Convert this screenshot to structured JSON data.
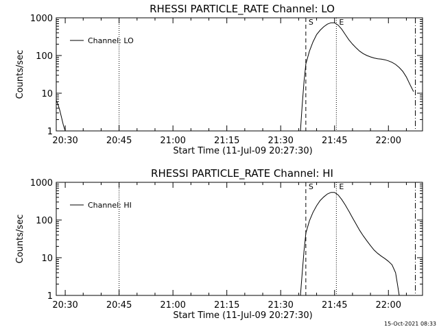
{
  "chart_data": [
    {
      "type": "line",
      "title": "RHESSI PARTICLE_RATE Channel: LO",
      "xlabel": "Start Time (11-Jul-09 20:27:30)",
      "ylabel": "Counts/sec",
      "yscale": "log",
      "ylim": [
        1,
        1000
      ],
      "xlim": [
        "20:27:30",
        "22:09:30"
      ],
      "xticks": [
        "20:30",
        "20:45",
        "21:00",
        "21:15",
        "21:30",
        "21:45",
        "22:00"
      ],
      "yticks": [
        "1",
        "10",
        "100",
        "1000"
      ],
      "legend": {
        "label": "Channel: LO",
        "placement": "top-left"
      },
      "vlines": [
        {
          "x": "20:45:00",
          "style": "dotted",
          "label": ""
        },
        {
          "x": "21:37:00",
          "style": "dashed",
          "label": "S"
        },
        {
          "x": "21:45:30",
          "style": "dotted",
          "label": "E"
        },
        {
          "x": "22:07:30",
          "style": "dashdot",
          "label": ""
        }
      ],
      "series": [
        {
          "name": "Channel: LO",
          "segments": [
            {
              "x": [
                "20:27:30",
                "20:28:00",
                "20:28:30",
                "20:29:00",
                "20:29:30",
                "20:30:00"
              ],
              "y": [
                6.5,
                5,
                3.5,
                2.2,
                1.4,
                1
              ]
            },
            {
              "x": [
                "21:35:30",
                "21:36:00",
                "21:36:30",
                "21:37:00",
                "21:38:00",
                "21:39:00",
                "21:40:00",
                "21:41:00",
                "21:42:00",
                "21:43:00",
                "21:44:00",
                "21:45:00",
                "21:46:00",
                "21:47:00",
                "21:48:00",
                "21:49:00",
                "21:50:00",
                "21:51:00",
                "21:52:00",
                "21:53:00",
                "21:54:00",
                "21:55:00",
                "21:56:00",
                "21:57:00",
                "21:58:00",
                "21:59:00",
                "22:00:00",
                "22:01:00",
                "22:02:00",
                "22:03:00",
                "22:04:00",
                "22:05:00",
                "22:06:00",
                "22:07:00"
              ],
              "y": [
                1,
                5,
                20,
                60,
                130,
                230,
                360,
                470,
                580,
                680,
                740,
                740,
                640,
                500,
                360,
                260,
                200,
                160,
                130,
                112,
                100,
                92,
                86,
                82,
                80,
                77,
                72,
                66,
                58,
                48,
                38,
                27,
                17,
                11
              ]
            }
          ]
        }
      ]
    },
    {
      "type": "line",
      "title": "RHESSI PARTICLE_RATE Channel: HI",
      "xlabel": "Start Time (11-Jul-09 20:27:30)",
      "ylabel": "Counts/sec",
      "yscale": "log",
      "ylim": [
        1,
        1000
      ],
      "xlim": [
        "20:27:30",
        "22:09:30"
      ],
      "xticks": [
        "20:30",
        "20:45",
        "21:00",
        "21:15",
        "21:30",
        "21:45",
        "22:00"
      ],
      "yticks": [
        "1",
        "10",
        "100",
        "1000"
      ],
      "legend": {
        "label": "Channel: HI",
        "placement": "top-left"
      },
      "vlines": [
        {
          "x": "20:45:00",
          "style": "dotted",
          "label": ""
        },
        {
          "x": "21:37:00",
          "style": "dashed",
          "label": "S"
        },
        {
          "x": "21:45:30",
          "style": "dotted",
          "label": "E"
        },
        {
          "x": "22:07:30",
          "style": "dashdot",
          "label": ""
        }
      ],
      "series": [
        {
          "name": "Channel: HI",
          "segments": [
            {
              "x": [
                "21:35:30",
                "21:36:00",
                "21:36:30",
                "21:37:00",
                "21:38:00",
                "21:39:00",
                "21:40:00",
                "21:41:00",
                "21:42:00",
                "21:43:00",
                "21:44:00",
                "21:45:00",
                "21:46:00",
                "21:47:00",
                "21:48:00",
                "21:49:00",
                "21:50:00",
                "21:51:00",
                "21:52:00",
                "21:53:00",
                "21:54:00",
                "21:55:00",
                "21:56:00",
                "21:57:00",
                "21:58:00",
                "21:59:00",
                "22:00:00",
                "22:01:00",
                "22:02:00",
                "22:02:30",
                "22:03:00"
              ],
              "y": [
                1,
                4,
                15,
                45,
                95,
                160,
                240,
                330,
                410,
                490,
                540,
                540,
                460,
                350,
                250,
                170,
                115,
                78,
                53,
                38,
                28,
                21,
                16,
                13,
                11,
                9.5,
                8,
                6.5,
                4,
                2,
                1
              ]
            }
          ]
        }
      ]
    }
  ],
  "footer": {
    "timestamp": "15-Oct-2021 08:33"
  }
}
